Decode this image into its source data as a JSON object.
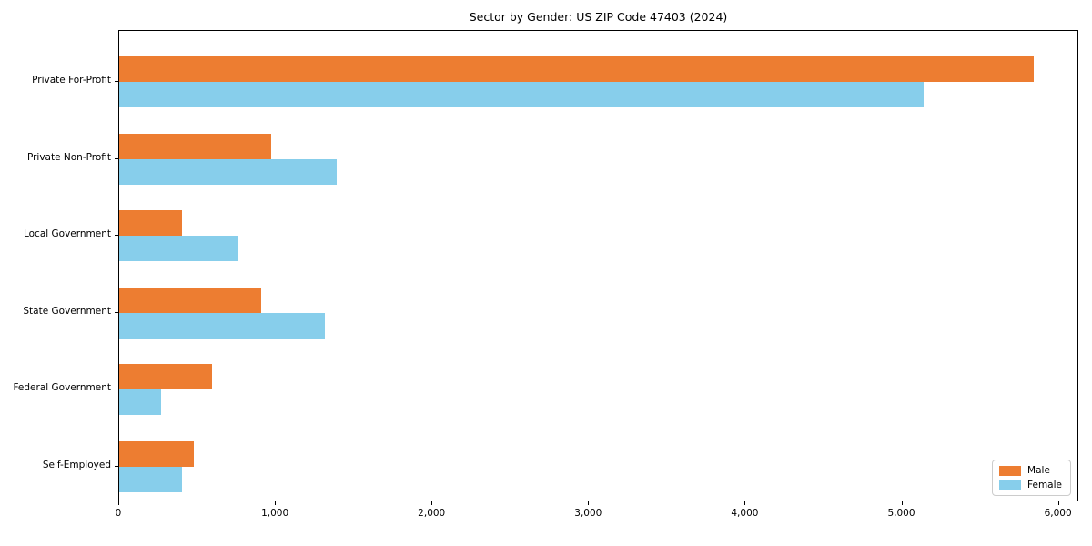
{
  "chart_data": {
    "type": "bar",
    "orientation": "horizontal",
    "title": "Sector by Gender: US ZIP Code 47403 (2024)",
    "categories": [
      "Private For-Profit",
      "Private Non-Profit",
      "Local Government",
      "State Government",
      "Federal Government",
      "Self-Employed"
    ],
    "series": [
      {
        "name": "Male",
        "color": "#ED7D31",
        "values": [
          5840,
          970,
          400,
          905,
          590,
          475
        ]
      },
      {
        "name": "Female",
        "color": "#87CEEB",
        "values": [
          5135,
          1390,
          760,
          1315,
          265,
          400
        ]
      }
    ],
    "xlabel": "",
    "ylabel": "",
    "xlim": [
      0,
      6130
    ],
    "xticks": [
      0,
      1000,
      2000,
      3000,
      4000,
      5000,
      6000
    ],
    "xtick_labels": [
      "0",
      "1,000",
      "2,000",
      "3,000",
      "4,000",
      "5,000",
      "6,000"
    ],
    "legend_position": "lower right",
    "grid": false,
    "plot_border_color": "#000000",
    "background_color": "#ffffff"
  }
}
